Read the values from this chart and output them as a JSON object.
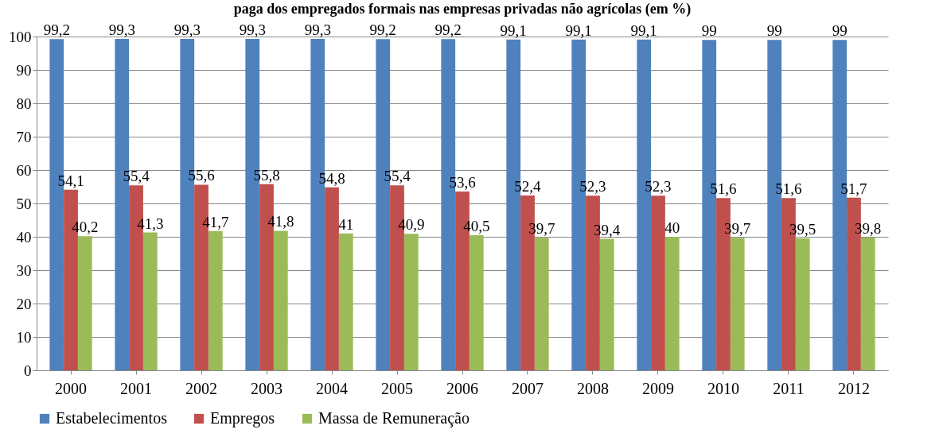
{
  "chart_data": {
    "type": "bar",
    "title": "paga dos empregados formais nas empresas privadas não agrícolas (em %)",
    "categories": [
      "2000",
      "2001",
      "2002",
      "2003",
      "2004",
      "2005",
      "2006",
      "2007",
      "2008",
      "2009",
      "2010",
      "2011",
      "2012"
    ],
    "series": [
      {
        "name": "Estabelecimentos",
        "color": "#4f81bd",
        "values": [
          99.2,
          99.3,
          99.3,
          99.3,
          99.3,
          99.2,
          99.2,
          99.1,
          99.1,
          99.1,
          99,
          99,
          99
        ],
        "value_labels": [
          "99,2",
          "99,3",
          "99,3",
          "99,3",
          "99,3",
          "99,2",
          "99,2",
          "99,1",
          "99,1",
          "99,1",
          "99",
          "99",
          "99"
        ]
      },
      {
        "name": "Empregos",
        "color": "#c0504d",
        "values": [
          54.1,
          55.4,
          55.6,
          55.8,
          54.8,
          55.4,
          53.6,
          52.4,
          52.3,
          52.3,
          51.6,
          51.6,
          51.7
        ],
        "value_labels": [
          "54,1",
          "55,4",
          "55,6",
          "55,8",
          "54,8",
          "55,4",
          "53,6",
          "52,4",
          "52,3",
          "52,3",
          "51,6",
          "51,6",
          "51,7"
        ]
      },
      {
        "name": "Massa de Remuneração",
        "color": "#9bbb59",
        "values": [
          40.2,
          41.3,
          41.7,
          41.8,
          41,
          40.9,
          40.5,
          39.7,
          39.4,
          40,
          39.7,
          39.5,
          39.8
        ],
        "value_labels": [
          "40,2",
          "41,3",
          "41,7",
          "41,8",
          "41",
          "40,9",
          "40,5",
          "39,7",
          "39,4",
          "40",
          "39,7",
          "39,5",
          "39,8"
        ]
      }
    ],
    "ylim": [
      0,
      100
    ],
    "yticks": [
      0,
      10,
      20,
      30,
      40,
      50,
      60,
      70,
      80,
      90,
      100
    ],
    "grid": "y",
    "legend": "bottom"
  }
}
